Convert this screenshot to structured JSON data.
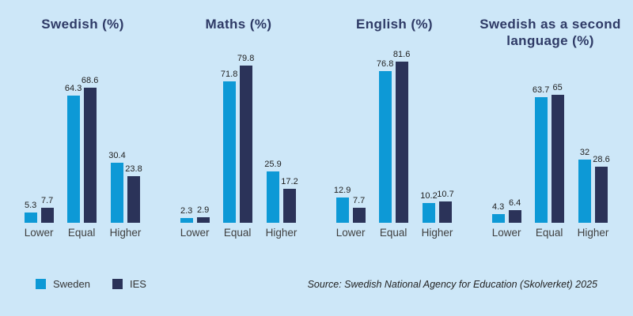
{
  "page": {
    "background": "#cde7f8"
  },
  "colors": {
    "sweden": "#0d99d6",
    "ies": "#2b3359",
    "title": "#2e3a66"
  },
  "legend": {
    "items": [
      {
        "label": "Sweden",
        "color_key": "sweden"
      },
      {
        "label": "IES",
        "color_key": "ies"
      }
    ]
  },
  "source": {
    "text": "Source: Swedish National Agency for Education (Skolverket) 2025"
  },
  "chart_data": [
    {
      "type": "bar",
      "title": "Swedish (%)",
      "categories": [
        "Lower",
        "Equal",
        "Higher"
      ],
      "series": [
        {
          "name": "Sweden",
          "values": [
            5.3,
            64.3,
            30.4
          ]
        },
        {
          "name": "IES",
          "values": [
            7.7,
            68.6,
            23.8
          ]
        }
      ],
      "ylim": [
        0,
        90
      ],
      "grid": false,
      "value_labels": true,
      "legend_position": "bottom-left"
    },
    {
      "type": "bar",
      "title": "Maths (%)",
      "categories": [
        "Lower",
        "Equal",
        "Higher"
      ],
      "series": [
        {
          "name": "Sweden",
          "values": [
            2.3,
            71.8,
            25.9
          ]
        },
        {
          "name": "IES",
          "values": [
            2.9,
            79.8,
            17.2
          ]
        }
      ],
      "ylim": [
        0,
        90
      ],
      "grid": false,
      "value_labels": true,
      "legend_position": "bottom-left"
    },
    {
      "type": "bar",
      "title": "English (%)",
      "categories": [
        "Lower",
        "Equal",
        "Higher"
      ],
      "series": [
        {
          "name": "Sweden",
          "values": [
            12.9,
            76.8,
            10.2
          ]
        },
        {
          "name": "IES",
          "values": [
            7.7,
            81.6,
            10.7
          ]
        }
      ],
      "ylim": [
        0,
        90
      ],
      "grid": false,
      "value_labels": true,
      "legend_position": "bottom-left"
    },
    {
      "type": "bar",
      "title": "Swedish as a second language (%)",
      "categories": [
        "Lower",
        "Equal",
        "Higher"
      ],
      "series": [
        {
          "name": "Sweden",
          "values": [
            4.3,
            63.7,
            32
          ]
        },
        {
          "name": "IES",
          "values": [
            6.4,
            65,
            28.6
          ]
        }
      ],
      "ylim": [
        0,
        90
      ],
      "grid": false,
      "value_labels": true,
      "legend_position": "bottom-left"
    }
  ]
}
